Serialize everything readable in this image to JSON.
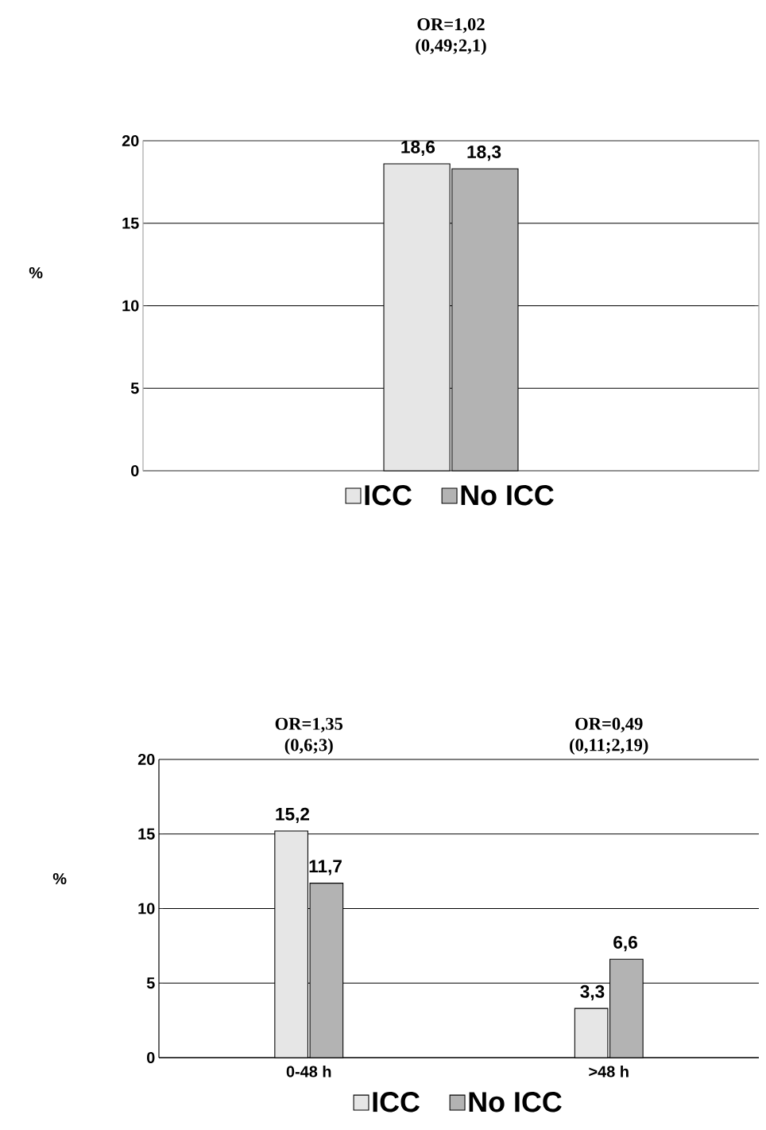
{
  "chart_data": [
    {
      "type": "bar",
      "title": "OR=1,02 (0,49;2,1)",
      "ylabel": "%",
      "categories": [
        null
      ],
      "series": [
        {
          "name": "ICC",
          "color": "#e6e6e6",
          "values": [
            18.6
          ],
          "value_labels": [
            "18,6"
          ]
        },
        {
          "name": "No ICC",
          "color": "#b3b3b3",
          "values": [
            18.3
          ],
          "value_labels": [
            "18,3"
          ]
        }
      ],
      "ylim": [
        0,
        20
      ],
      "yticks": [
        0,
        5,
        10,
        15,
        20
      ],
      "grid": "y",
      "legend": "bottom"
    },
    {
      "type": "bar",
      "ylabel": "%",
      "categories": [
        "0-48 h",
        ">48 h"
      ],
      "series": [
        {
          "name": "ICC",
          "color": "#e6e6e6",
          "values": [
            15.2,
            3.3
          ],
          "value_labels": [
            "15,2",
            "3,3"
          ]
        },
        {
          "name": "No ICC",
          "color": "#b3b3b3",
          "values": [
            11.7,
            6.6
          ],
          "value_labels": [
            "11,7",
            "6,6"
          ]
        }
      ],
      "annotations": [
        "OR=1,35 (0,6;3)",
        "OR=0,49 (0,11;2,19)"
      ],
      "ylim": [
        0,
        20
      ],
      "yticks": [
        0,
        5,
        10,
        15,
        20
      ],
      "grid": "y",
      "legend": "bottom"
    }
  ]
}
